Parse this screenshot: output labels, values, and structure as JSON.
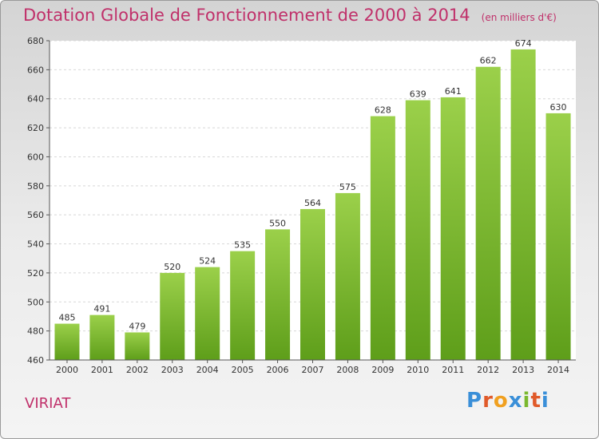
{
  "header": {
    "title": "Dotation Globale de Fonctionnement de 2000 à 2014",
    "unit": "(en milliers d'€)"
  },
  "footer": {
    "commune": "VIRIAT",
    "logo_letters": [
      "P",
      "r",
      "o",
      "x",
      "i",
      "t",
      "i"
    ],
    "logo_colors": [
      "#3a8fd8",
      "#e05a2a",
      "#f0a020",
      "#3a8fd8",
      "#7ab82e",
      "#e05a2a",
      "#3a8fd8"
    ]
  },
  "colors": {
    "title": "#c0306a",
    "bar_top": "#9bd04a",
    "bar_bottom": "#5e9e1a"
  },
  "chart_data": {
    "type": "bar",
    "title": "Dotation Globale de Fonctionnement de 2000 à 2014",
    "subtitle": "(en milliers d'€)",
    "categories": [
      "2000",
      "2001",
      "2002",
      "2003",
      "2004",
      "2005",
      "2006",
      "2007",
      "2008",
      "2009",
      "2010",
      "2011",
      "2012",
      "2013",
      "2014"
    ],
    "values": [
      485,
      491,
      479,
      520,
      524,
      535,
      550,
      564,
      575,
      628,
      639,
      641,
      662,
      674,
      630
    ],
    "ylim": [
      460,
      680
    ],
    "yticks": [
      460,
      480,
      500,
      520,
      540,
      560,
      580,
      600,
      620,
      640,
      660,
      680
    ],
    "grid": true,
    "legend": "none"
  }
}
